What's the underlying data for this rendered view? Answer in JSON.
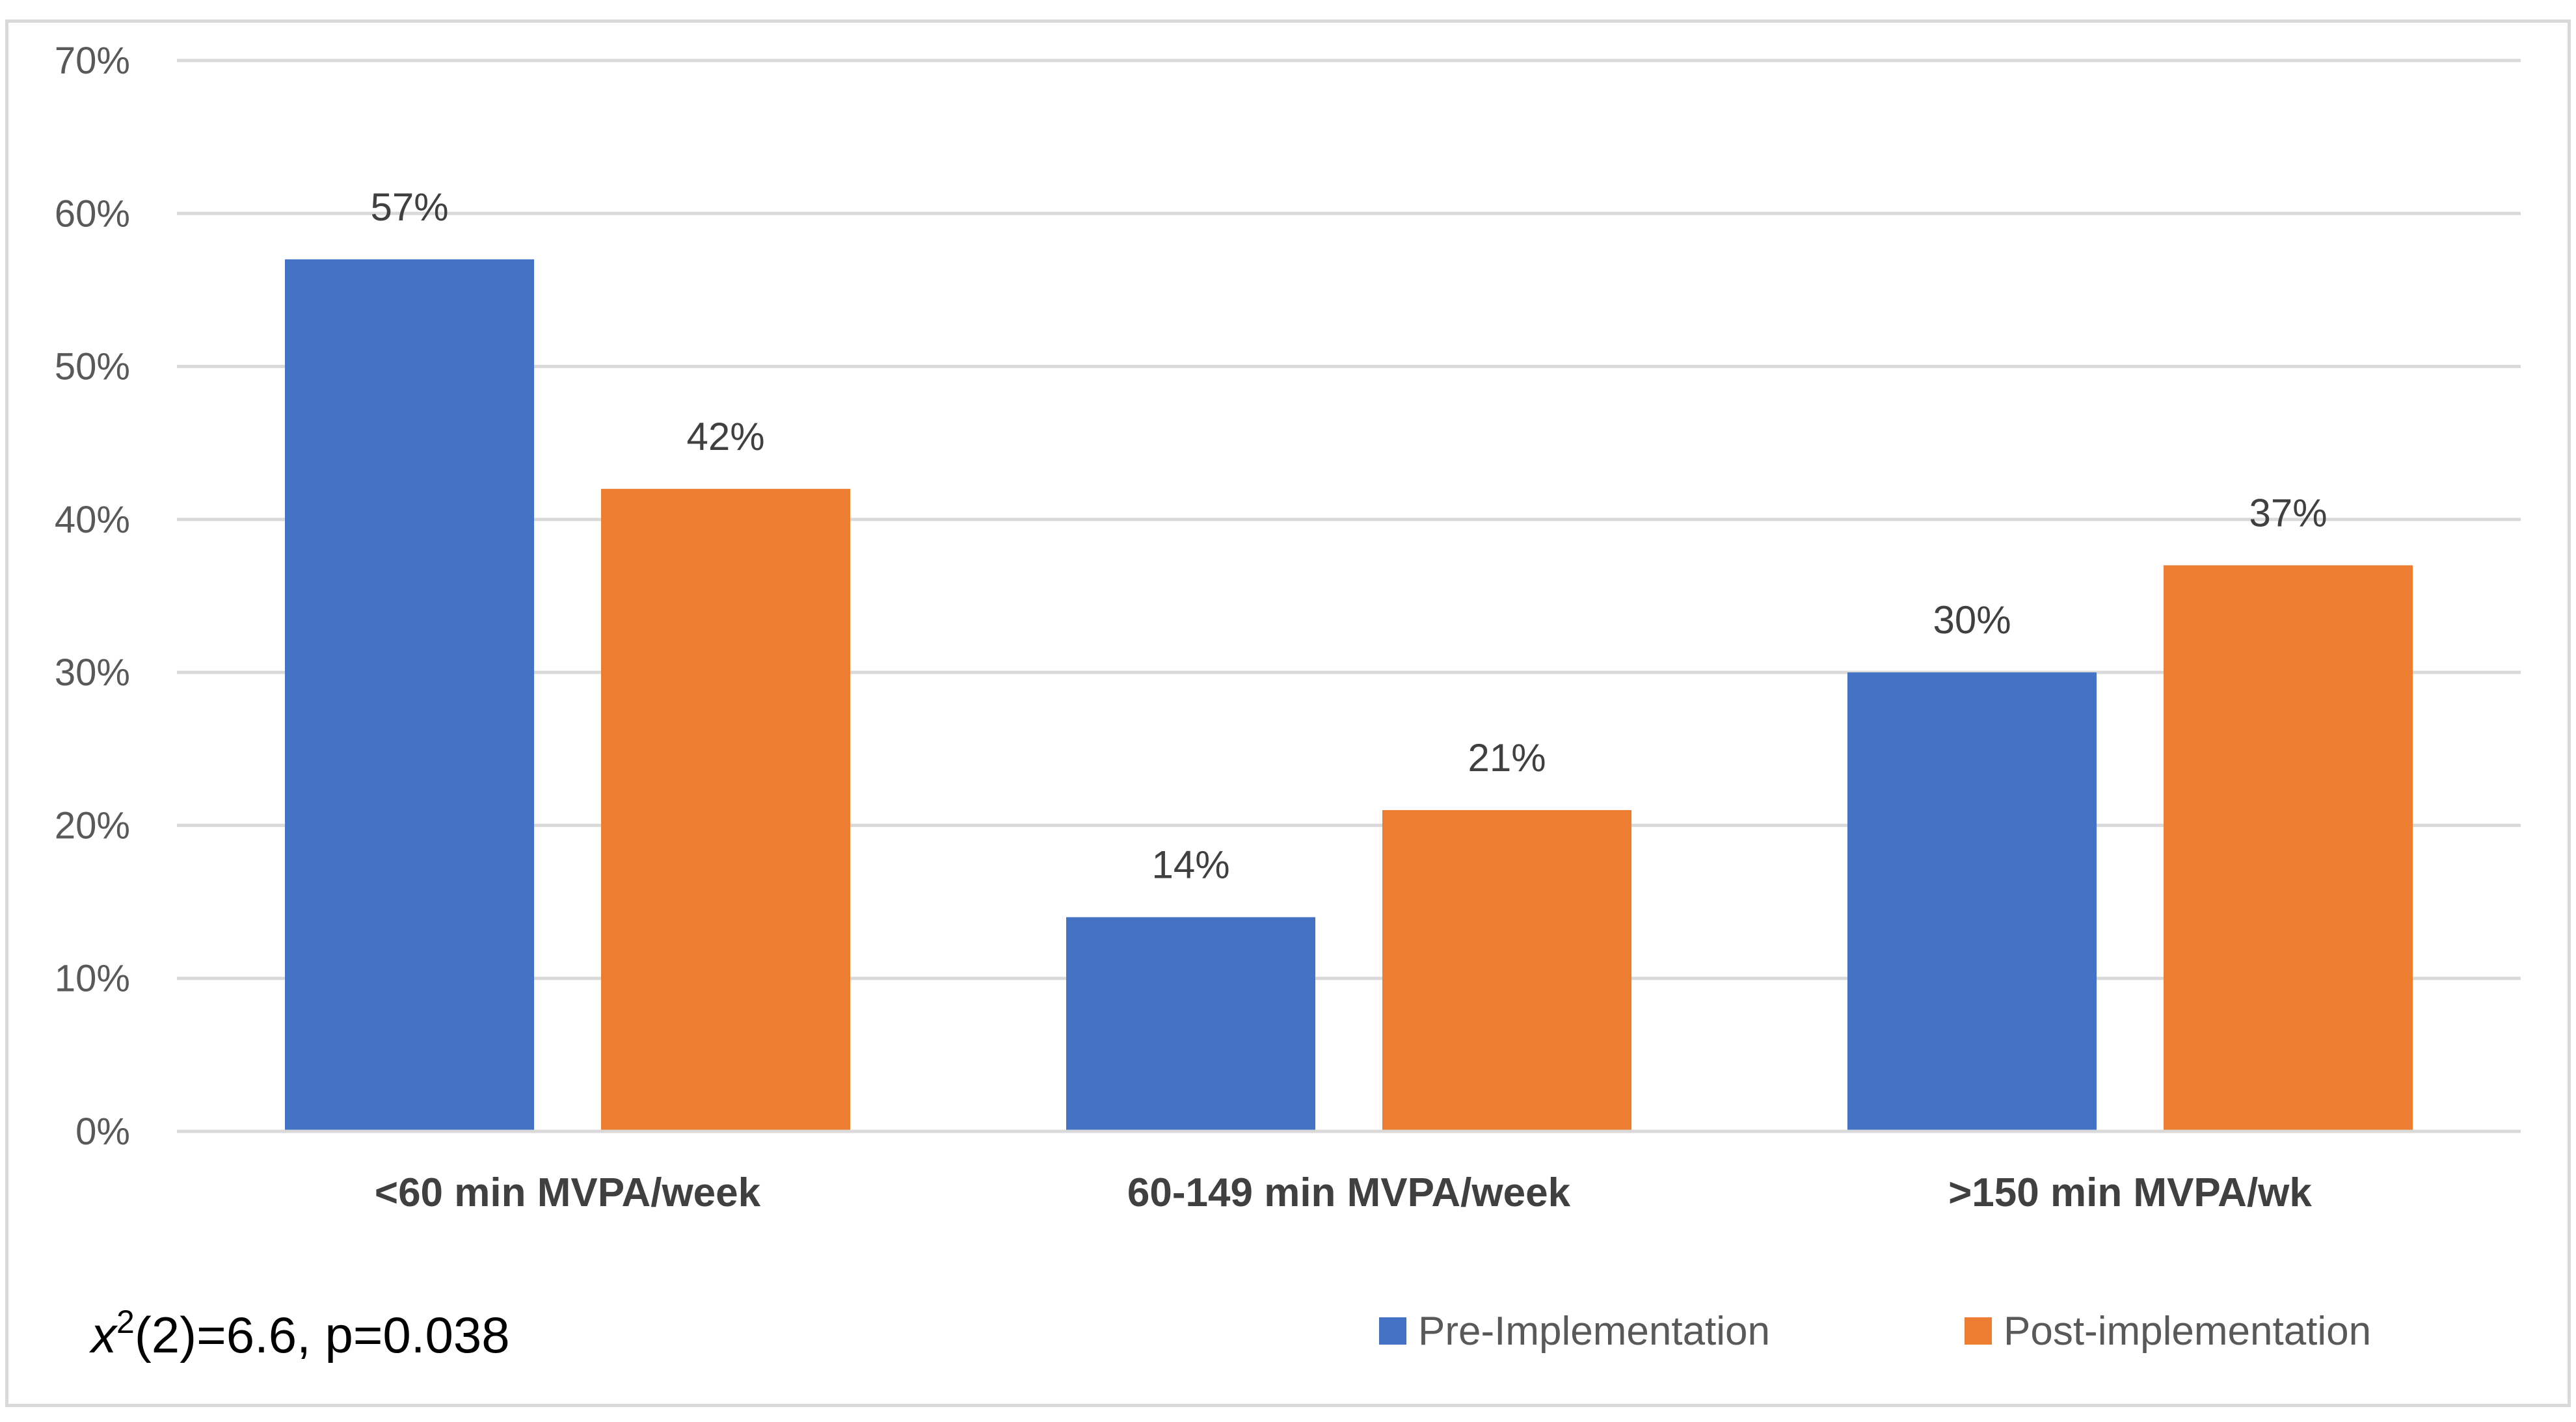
{
  "chart_data": {
    "type": "bar",
    "title": "",
    "xlabel": "",
    "ylabel": "",
    "categories": [
      "<60 min MVPA/week",
      "60-149 min MVPA/week",
      ">150 min MVPA/wk"
    ],
    "series": [
      {
        "name": "Pre-Implementation",
        "color": "#4472c4",
        "values": [
          57,
          14,
          30
        ],
        "labels": [
          "57%",
          "14%",
          "30%"
        ]
      },
      {
        "name": "Post-implementation",
        "color": "#ed7d31",
        "values": [
          42,
          21,
          37
        ],
        "labels": [
          "42%",
          "21%",
          "37%"
        ]
      }
    ],
    "ylim": [
      0,
      70
    ],
    "yticks": [
      0,
      10,
      20,
      30,
      40,
      50,
      60,
      70
    ],
    "ytick_labels": [
      "0%",
      "10%",
      "20%",
      "30%",
      "40%",
      "50%",
      "60%",
      "70%"
    ],
    "grid": true,
    "legend_position": "bottom-right",
    "annotation": {
      "prefix": "x",
      "superscript": "2",
      "suffix": "(2)=6.6, p=0.038"
    }
  }
}
